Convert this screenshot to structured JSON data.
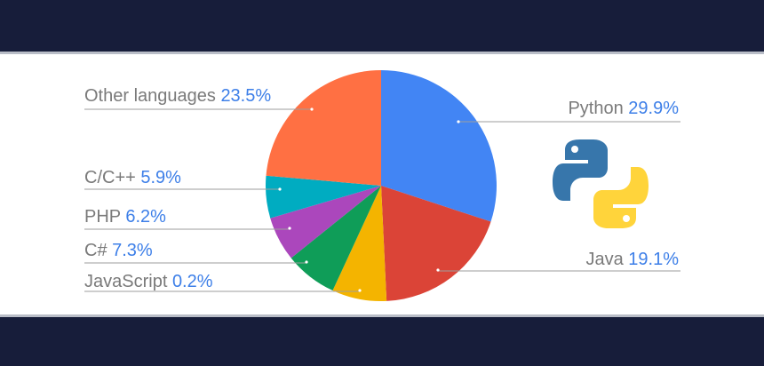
{
  "chart_data": {
    "type": "pie",
    "slices": [
      {
        "label": "Python",
        "value": 29.9,
        "display": "29.9%",
        "color": "#4285f4"
      },
      {
        "label": "Java",
        "value": 19.1,
        "display": "19.1%",
        "color": "#db4437"
      },
      {
        "label": "JavaScript",
        "value": 0.2,
        "display": "0.2%",
        "color": "#f4b400"
      },
      {
        "label": "C#",
        "value": 7.3,
        "display": "7.3%",
        "color": "#0f9d58"
      },
      {
        "label": "PHP",
        "value": 6.2,
        "display": "6.2%",
        "color": "#ab47bc"
      },
      {
        "label": "C/C++",
        "value": 5.9,
        "display": "5.9%",
        "color": "#00acc1"
      },
      {
        "label": "Other languages",
        "value": 23.5,
        "display": "23.5%",
        "color": "#ff7043"
      }
    ],
    "legend": "labels beside slices with leader lines"
  },
  "logo": {
    "icon": "python-logo-icon",
    "colors": [
      "#3776ab",
      "#ffd43b"
    ]
  }
}
